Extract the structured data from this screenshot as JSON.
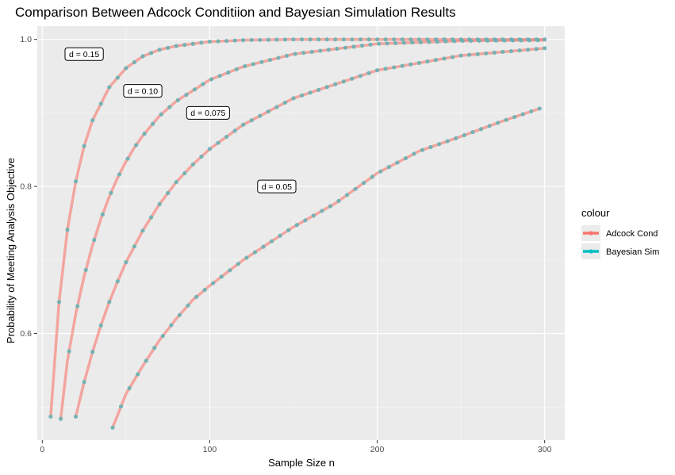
{
  "chart_data": {
    "type": "line",
    "title": "Comparison Between Adcock Conditiion and Bayesian Simulation Results",
    "xlabel": "Sample Size n",
    "ylabel": "Probability of Meeting Analysis Objective",
    "xlim": [
      -3,
      312
    ],
    "ylim": [
      0.455,
      1.018
    ],
    "xticks": [
      0,
      100,
      200,
      300
    ],
    "xtick_labels": [
      "0",
      "100",
      "200",
      "300"
    ],
    "yticks": [
      0.6,
      0.8,
      1.0
    ],
    "ytick_labels": [
      "0.6",
      "0.8",
      "1.0"
    ],
    "grid": true,
    "legend": {
      "title": "colour",
      "position": "right",
      "entries": [
        {
          "label": "Adcock Cond",
          "color": "#F8766D"
        },
        {
          "label": "Bayesian Sim",
          "color": "#00BFC4"
        }
      ]
    },
    "series": [
      {
        "name": "Adcock Cond",
        "color": "#F8766D",
        "mark": "line",
        "curves": [
          {
            "x": [
              5,
              10,
              15,
              20,
              25,
              30,
              40,
              50,
              60,
              70,
              80,
              100,
              120,
              150,
              200,
              250,
              300
            ],
            "y": [
              0.487,
              0.643,
              0.741,
              0.807,
              0.855,
              0.89,
              0.935,
              0.961,
              0.977,
              0.986,
              0.991,
              0.997,
              0.999,
              1.0,
              1.0,
              1.0,
              1.0
            ]
          },
          {
            "x": [
              11,
              15,
              20,
              25,
              30,
              35,
              40,
              45,
              50,
              55,
              60,
              70,
              80,
              100,
              120,
              150,
              200,
              250,
              300
            ],
            "y": [
              0.484,
              0.563,
              0.627,
              0.678,
              0.72,
              0.756,
              0.786,
              0.812,
              0.834,
              0.853,
              0.869,
              0.896,
              0.916,
              0.945,
              0.963,
              0.98,
              0.994,
              0.998,
              0.999
            ]
          },
          {
            "x": [
              20,
              25,
              30,
              35,
              40,
              45,
              50,
              60,
              70,
              80,
              90,
              100,
              120,
              150,
              200,
              250,
              300
            ],
            "y": [
              0.487,
              0.534,
              0.575,
              0.611,
              0.643,
              0.671,
              0.697,
              0.74,
              0.776,
              0.806,
              0.83,
              0.851,
              0.884,
              0.92,
              0.958,
              0.978,
              0.988
            ]
          },
          {
            "x": [
              42,
              50,
              60,
              70,
              80,
              90,
              100,
              120,
              150,
              175,
              200,
              225,
              250,
              275,
              297
            ],
            "y": [
              0.472,
              0.518,
              0.556,
              0.591,
              0.62,
              0.646,
              0.665,
              0.7,
              0.745,
              0.777,
              0.818,
              0.848,
              0.868,
              0.889,
              0.906
            ]
          }
        ]
      },
      {
        "name": "Bayesian Sim",
        "color": "#00BFC4",
        "mark": "points",
        "curves": [
          {
            "x_start": 5,
            "x_step": 5,
            "x_end": 300,
            "curve_index": 0
          },
          {
            "x_start": 11,
            "x_step": 5,
            "x_end": 300,
            "curve_index": 1
          },
          {
            "x_start": 20,
            "x_step": 5,
            "x_end": 300,
            "curve_index": 2
          },
          {
            "x_start": 42,
            "x_step": 5,
            "x_end": 297,
            "curve_index": 3
          }
        ]
      }
    ],
    "annotations": [
      {
        "text": "d = 0.15",
        "x": 25,
        "y": 0.98
      },
      {
        "text": "d = 0.10",
        "x": 60,
        "y": 0.93
      },
      {
        "text": "d = 0.075",
        "x": 99,
        "y": 0.9
      },
      {
        "text": "d = 0.05",
        "x": 140,
        "y": 0.8
      }
    ]
  }
}
